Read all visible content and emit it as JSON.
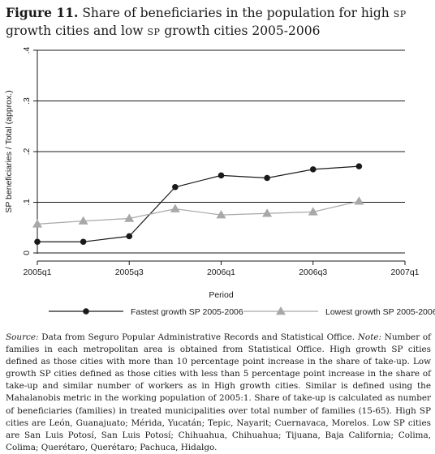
{
  "title": {
    "figure_label": "Figure 11.",
    "part1": " Share of beneficiaries in the population for high ",
    "sp1": "SP",
    "part2": " growth cities and low ",
    "sp2": "SP",
    "part3": " growth cities 2005-2006"
  },
  "chart_data": {
    "type": "line",
    "xlabel": "Period",
    "ylabel": "SP beneficiaries / Total (approx.)",
    "x_tick_labels": [
      "2005q1",
      "2005q3",
      "2006q1",
      "2006q3",
      "2007q1"
    ],
    "x_tick_values": [
      0,
      2,
      4,
      6,
      8
    ],
    "y_tick_labels": [
      "0",
      ".1",
      ".2",
      ".3",
      ".4"
    ],
    "y_tick_values": [
      0,
      0.1,
      0.2,
      0.3,
      0.4
    ],
    "xlim": [
      0,
      8
    ],
    "ylim": [
      0,
      0.4
    ],
    "grid": "horizontal",
    "legend_position": "bottom",
    "x": [
      "2005q1",
      "2005q2",
      "2005q3",
      "2005q4",
      "2006q1",
      "2006q2",
      "2006q3",
      "2006q4"
    ],
    "series": [
      {
        "name": "Fastest growth SP 2005-2006",
        "marker": "circle",
        "color": "#1a1a1a",
        "values": [
          0.022,
          0.022,
          0.033,
          0.13,
          0.153,
          0.148,
          0.165,
          0.171
        ]
      },
      {
        "name": "Lowest growth SP 2005-2006",
        "marker": "triangle",
        "color": "#a8a8a8",
        "values": [
          0.057,
          0.063,
          0.068,
          0.087,
          0.075,
          0.078,
          0.081,
          0.102
        ]
      }
    ]
  },
  "notes": {
    "source_label": "Source:",
    "source_text": " Data from Seguro Popular Administrative Records and Statistical Office. ",
    "note_label": "Note:",
    "note_text": " Number of families in each metropolitan area is obtained from Statistical Office. High growth SP cities defined as those cities with more than 10 percentage point increase in the share of take-up. Low growth SP cities defined as those cities with less than 5 percentage point increase in the share of take-up and similar number of workers as in High growth cities. Similar is defined using the Mahalanobis metric in the working population of 2005:1. Share of take-up is calculated as number of beneficiaries (families) in treated municipalities over total number of families (15-65). High SP cities are León, Guanajuato; Mérida, Yucatán; Tepic, Nayarit; Cuernavaca, Morelos. Low SP cities are San Luis Potosí, San Luis Potosí; Chihuahua, Chihuahua; Tijuana, Baja California; Colima, Colima; Querétaro, Querétaro; Pachuca, Hidalgo."
  }
}
